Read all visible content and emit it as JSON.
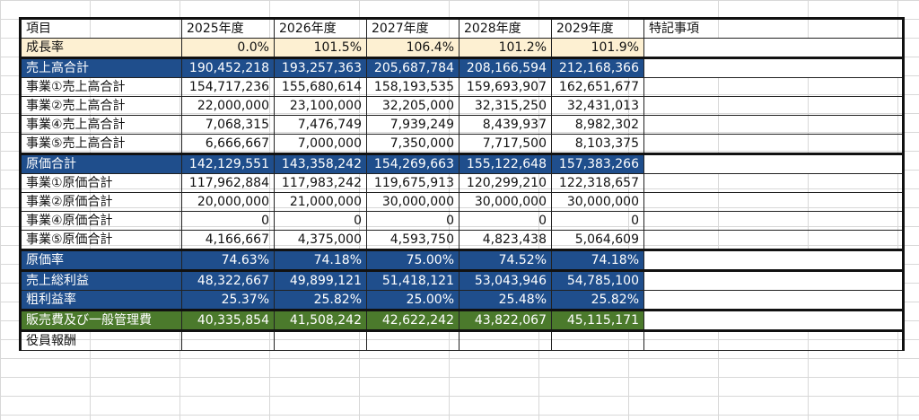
{
  "header": [
    "項目",
    "2025年度",
    "2026年度",
    "2027年度",
    "2028年度",
    "2029年度",
    "特記事項"
  ],
  "rows": {
    "growth": {
      "label": "成長率",
      "values": [
        "0.0%",
        "101.5%",
        "106.4%",
        "101.2%",
        "101.9%"
      ]
    },
    "sales_total": {
      "label": "売上高合計",
      "values": [
        "190,452,218",
        "193,257,363",
        "205,687,784",
        "208,166,594",
        "212,168,366"
      ]
    },
    "sales_1": {
      "label": "事業①売上高合計",
      "values": [
        "154,717,236",
        "155,680,614",
        "158,193,535",
        "159,693,907",
        "162,651,677"
      ]
    },
    "sales_2": {
      "label": "事業②売上高合計",
      "values": [
        "22,000,000",
        "23,100,000",
        "32,205,000",
        "32,315,250",
        "32,431,013"
      ]
    },
    "sales_4": {
      "label": "事業④売上高合計",
      "values": [
        "7,068,315",
        "7,476,749",
        "7,939,249",
        "8,439,937",
        "8,982,302"
      ]
    },
    "sales_5": {
      "label": "事業⑤売上高合計",
      "values": [
        "6,666,667",
        "7,000,000",
        "7,350,000",
        "7,717,500",
        "8,103,375"
      ]
    },
    "cost_total": {
      "label": "原価合計",
      "values": [
        "142,129,551",
        "143,358,242",
        "154,269,663",
        "155,122,648",
        "157,383,266"
      ]
    },
    "cost_1": {
      "label": "事業①原価合計",
      "values": [
        "117,962,884",
        "117,983,242",
        "119,675,913",
        "120,299,210",
        "122,318,657"
      ]
    },
    "cost_2": {
      "label": "事業②原価合計",
      "values": [
        "20,000,000",
        "21,000,000",
        "30,000,000",
        "30,000,000",
        "30,000,000"
      ]
    },
    "cost_4": {
      "label": "事業④原価合計",
      "values": [
        "0",
        "0",
        "0",
        "0",
        "0"
      ]
    },
    "cost_5": {
      "label": "事業⑤原価合計",
      "values": [
        "4,166,667",
        "4,375,000",
        "4,593,750",
        "4,823,438",
        "5,064,609"
      ]
    },
    "cost_rate": {
      "label": "原価率",
      "values": [
        "74.63%",
        "74.18%",
        "75.00%",
        "74.52%",
        "74.18%"
      ]
    },
    "gross_profit": {
      "label": "売上総利益",
      "values": [
        "48,322,667",
        "49,899,121",
        "51,418,121",
        "53,043,946",
        "54,785,100"
      ]
    },
    "gross_margin": {
      "label": "粗利益率",
      "values": [
        "25.37%",
        "25.82%",
        "25.00%",
        "25.48%",
        "25.82%"
      ]
    },
    "sga": {
      "label": "販売費及び一般管理費",
      "values": [
        "40,335,854",
        "41,508,242",
        "42,622,242",
        "43,822,067",
        "45,115,171"
      ]
    },
    "officer_pay": {
      "label": "役員報酬",
      "values": [
        "",
        "",
        "",
        "",
        ""
      ]
    }
  },
  "colors": {
    "blue_band": "#1f4e8c",
    "green_band": "#4b7a2c",
    "growth_band": "#fdf0d2"
  }
}
